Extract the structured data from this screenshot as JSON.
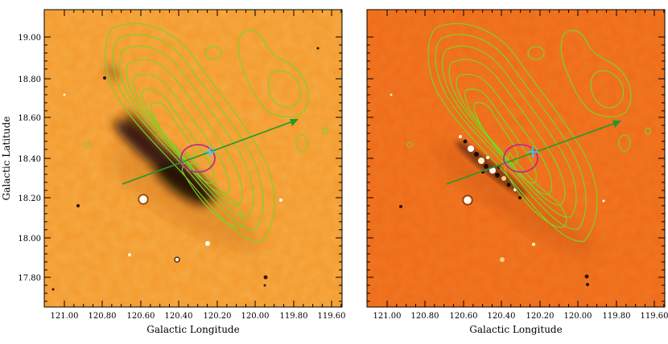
{
  "figure": {
    "panels": [
      {
        "id": "left",
        "xlabel": "Galactic Longitude",
        "ylabel": "Galactic Latitude",
        "xticks": [
          "121.00",
          "120.80",
          "120.60",
          "120.40",
          "120.20",
          "120.00",
          "119.80",
          "119.60"
        ],
        "yticks": [
          "19.00",
          "18.80",
          "18.60",
          "18.40",
          "18.20",
          "18.00",
          "17.80"
        ]
      },
      {
        "id": "right",
        "xlabel": "Galactic Longitude",
        "ylabel": "",
        "xticks": [
          "121.00",
          "120.80",
          "120.60",
          "120.40",
          "120.20",
          "120.00",
          "119.80",
          "119.60"
        ],
        "yticks": []
      }
    ],
    "colors": {
      "background_left": "#f3982a",
      "background_right": "#ee6a18",
      "contour": "#7ed321",
      "arrow": "#1f9a2a",
      "ellipse": "#c02a8a",
      "cross": "#27d7ff",
      "dark_filament": "#2a1208"
    },
    "icons": [
      "contour-lines",
      "arrow",
      "ellipse-marker",
      "cross-marker"
    ]
  }
}
